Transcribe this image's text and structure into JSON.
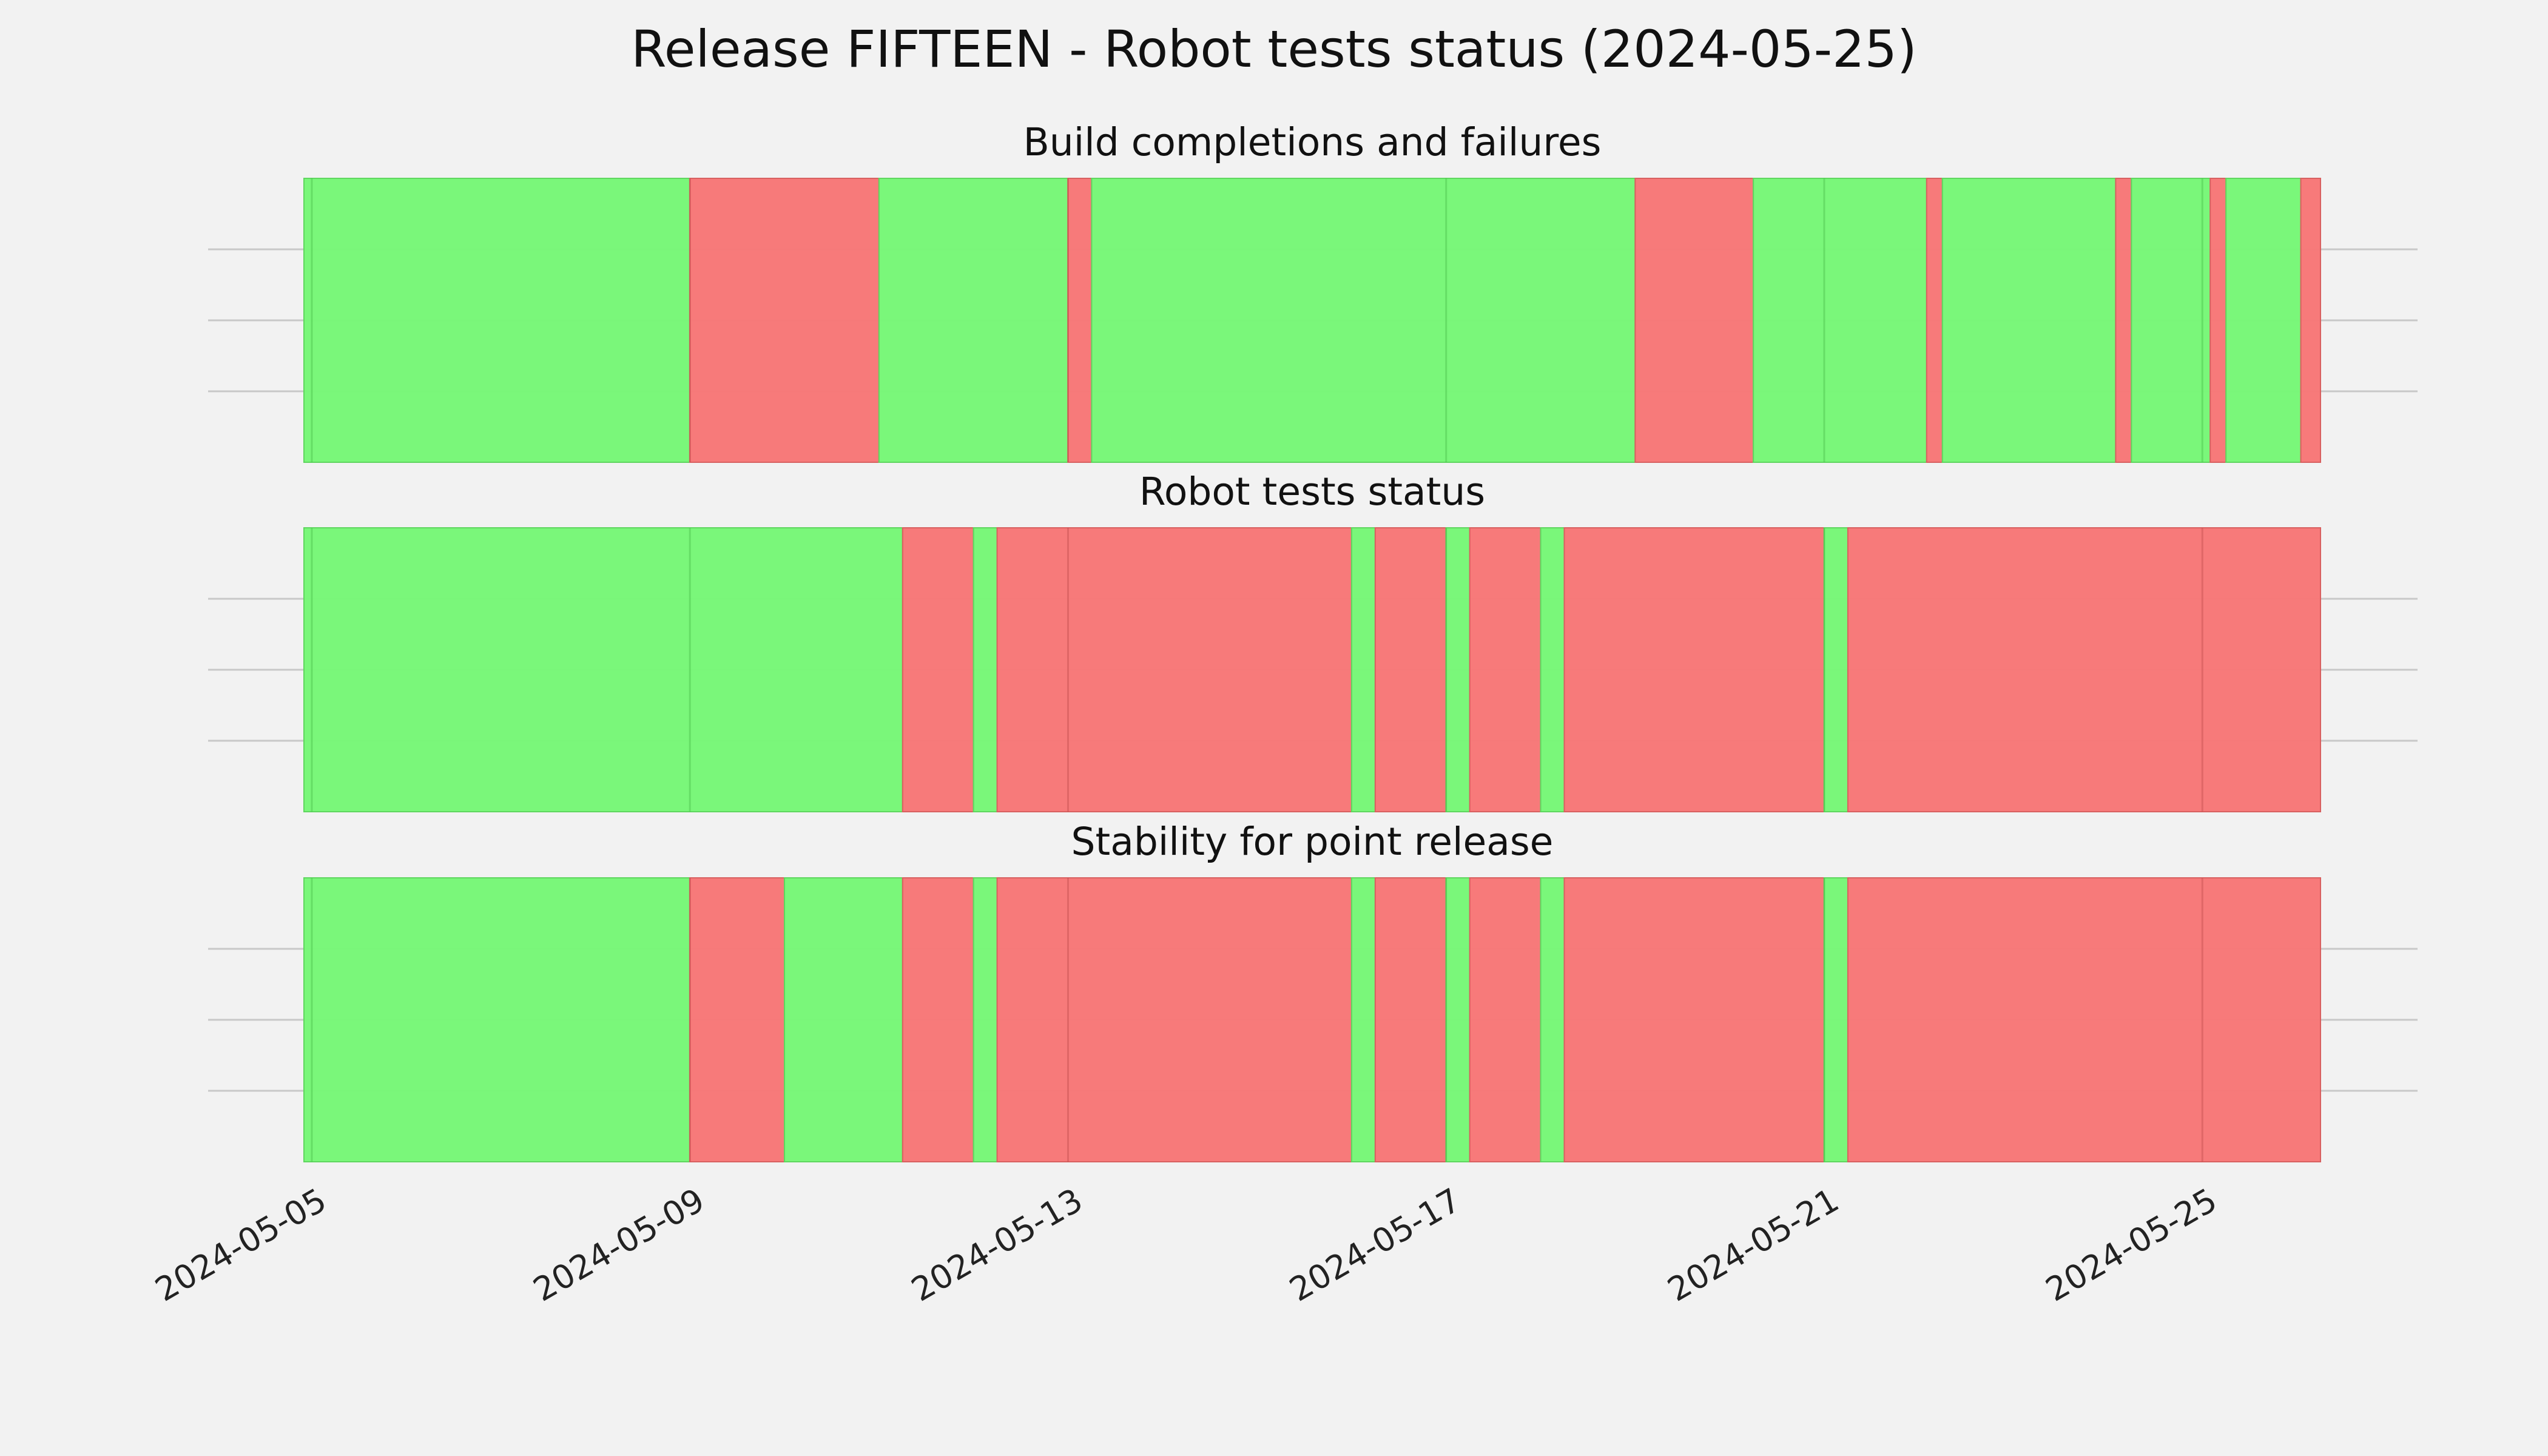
{
  "chart_data": {
    "title": "Release FIFTEEN - Robot tests status (2024-05-25)",
    "type": "timeline-bands",
    "x_axis": {
      "type": "date",
      "range": [
        "2024-05-04T22:00",
        "2024-05-26T06:00"
      ],
      "ticks": [
        "2024-05-05",
        "2024-05-09",
        "2024-05-13",
        "2024-05-17",
        "2024-05-21",
        "2024-05-25"
      ]
    },
    "colors": {
      "pass": "#77f777",
      "fail": "#f77777"
    },
    "grid": true,
    "panels": [
      {
        "title": "Build completions and failures",
        "segments": [
          {
            "start": "2024-05-04T22:00",
            "end": "2024-05-09T00:00",
            "status": "pass"
          },
          {
            "start": "2024-05-09T00:00",
            "end": "2024-05-11T00:00",
            "status": "fail"
          },
          {
            "start": "2024-05-11T00:00",
            "end": "2024-05-13T00:00",
            "status": "pass"
          },
          {
            "start": "2024-05-13T00:00",
            "end": "2024-05-13T06:00",
            "status": "fail"
          },
          {
            "start": "2024-05-13T06:00",
            "end": "2024-05-19T00:00",
            "status": "pass"
          },
          {
            "start": "2024-05-19T00:00",
            "end": "2024-05-20T06:00",
            "status": "fail"
          },
          {
            "start": "2024-05-20T06:00",
            "end": "2024-05-22T02:00",
            "status": "pass"
          },
          {
            "start": "2024-05-22T02:00",
            "end": "2024-05-22T06:00",
            "status": "fail"
          },
          {
            "start": "2024-05-22T06:00",
            "end": "2024-05-24T02:00",
            "status": "pass"
          },
          {
            "start": "2024-05-24T02:00",
            "end": "2024-05-24T06:00",
            "status": "fail"
          },
          {
            "start": "2024-05-24T06:00",
            "end": "2024-05-25T02:00",
            "status": "pass"
          },
          {
            "start": "2024-05-25T02:00",
            "end": "2024-05-25T06:00",
            "status": "fail"
          },
          {
            "start": "2024-05-25T06:00",
            "end": "2024-05-26T01:00",
            "status": "pass"
          },
          {
            "start": "2024-05-26T01:00",
            "end": "2024-05-26T06:00",
            "status": "fail"
          }
        ]
      },
      {
        "title": "Robot tests status",
        "segments": [
          {
            "start": "2024-05-04T22:00",
            "end": "2024-05-11T06:00",
            "status": "pass"
          },
          {
            "start": "2024-05-11T06:00",
            "end": "2024-05-12T00:00",
            "status": "fail"
          },
          {
            "start": "2024-05-12T00:00",
            "end": "2024-05-12T06:00",
            "status": "pass"
          },
          {
            "start": "2024-05-12T06:00",
            "end": "2024-05-16T00:00",
            "status": "fail"
          },
          {
            "start": "2024-05-16T00:00",
            "end": "2024-05-16T06:00",
            "status": "pass"
          },
          {
            "start": "2024-05-16T06:00",
            "end": "2024-05-17T00:00",
            "status": "fail"
          },
          {
            "start": "2024-05-17T00:00",
            "end": "2024-05-17T06:00",
            "status": "pass"
          },
          {
            "start": "2024-05-17T06:00",
            "end": "2024-05-18T00:00",
            "status": "fail"
          },
          {
            "start": "2024-05-18T00:00",
            "end": "2024-05-18T06:00",
            "status": "pass"
          },
          {
            "start": "2024-05-18T06:00",
            "end": "2024-05-21T00:00",
            "status": "fail"
          },
          {
            "start": "2024-05-21T00:00",
            "end": "2024-05-21T06:00",
            "status": "pass"
          },
          {
            "start": "2024-05-21T06:00",
            "end": "2024-05-26T06:00",
            "status": "fail"
          }
        ]
      },
      {
        "title": "Stability for point release",
        "segments": [
          {
            "start": "2024-05-04T22:00",
            "end": "2024-05-09T00:00",
            "status": "pass"
          },
          {
            "start": "2024-05-09T00:00",
            "end": "2024-05-10T00:00",
            "status": "fail"
          },
          {
            "start": "2024-05-10T00:00",
            "end": "2024-05-11T06:00",
            "status": "pass"
          },
          {
            "start": "2024-05-11T06:00",
            "end": "2024-05-12T00:00",
            "status": "fail"
          },
          {
            "start": "2024-05-12T00:00",
            "end": "2024-05-12T06:00",
            "status": "pass"
          },
          {
            "start": "2024-05-12T06:00",
            "end": "2024-05-16T00:00",
            "status": "fail"
          },
          {
            "start": "2024-05-16T00:00",
            "end": "2024-05-16T06:00",
            "status": "pass"
          },
          {
            "start": "2024-05-16T06:00",
            "end": "2024-05-17T00:00",
            "status": "fail"
          },
          {
            "start": "2024-05-17T00:00",
            "end": "2024-05-17T06:00",
            "status": "pass"
          },
          {
            "start": "2024-05-17T06:00",
            "end": "2024-05-18T00:00",
            "status": "fail"
          },
          {
            "start": "2024-05-18T00:00",
            "end": "2024-05-18T06:00",
            "status": "pass"
          },
          {
            "start": "2024-05-18T06:00",
            "end": "2024-05-21T00:00",
            "status": "fail"
          },
          {
            "start": "2024-05-21T00:00",
            "end": "2024-05-21T06:00",
            "status": "pass"
          },
          {
            "start": "2024-05-21T06:00",
            "end": "2024-05-26T06:00",
            "status": "fail"
          }
        ]
      }
    ]
  }
}
